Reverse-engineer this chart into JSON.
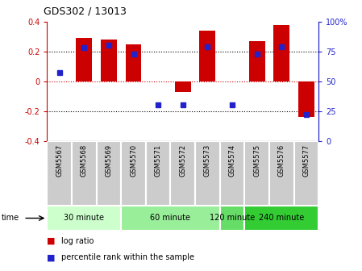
{
  "title": "GDS302 / 13013",
  "samples": [
    "GSM5567",
    "GSM5568",
    "GSM5569",
    "GSM5570",
    "GSM5571",
    "GSM5572",
    "GSM5573",
    "GSM5574",
    "GSM5575",
    "GSM5576",
    "GSM5577"
  ],
  "log_ratio": [
    0.0,
    0.29,
    0.28,
    0.25,
    0.0,
    -0.07,
    0.34,
    0.0,
    0.27,
    0.38,
    -0.24
  ],
  "percentile": [
    57,
    78,
    80,
    73,
    30,
    30,
    79,
    30,
    73,
    79,
    22
  ],
  "bar_color": "#cc0000",
  "dot_color": "#2222cc",
  "groups": [
    {
      "label": "30 minute",
      "start": 0,
      "end": 2,
      "color": "#ccffcc"
    },
    {
      "label": "60 minute",
      "start": 3,
      "end": 6,
      "color": "#99ee99"
    },
    {
      "label": "120 minute",
      "start": 7,
      "end": 7,
      "color": "#66dd66"
    },
    {
      "label": "240 minute",
      "start": 8,
      "end": 10,
      "color": "#33cc33"
    }
  ],
  "ylim_left": [
    -0.4,
    0.4
  ],
  "ylim_right": [
    0,
    100
  ],
  "yticks_left": [
    -0.4,
    -0.2,
    0.0,
    0.2,
    0.4
  ],
  "yticks_right": [
    0,
    25,
    50,
    75,
    100
  ],
  "hlines_dotted": [
    0.2,
    -0.2
  ],
  "hline_dashed": 0.0,
  "legend_log_ratio": "log ratio",
  "legend_percentile": "percentile rank within the sample",
  "time_label": "time",
  "background_color": "#ffffff",
  "plot_bg": "#ffffff",
  "label_bg": "#cccccc"
}
